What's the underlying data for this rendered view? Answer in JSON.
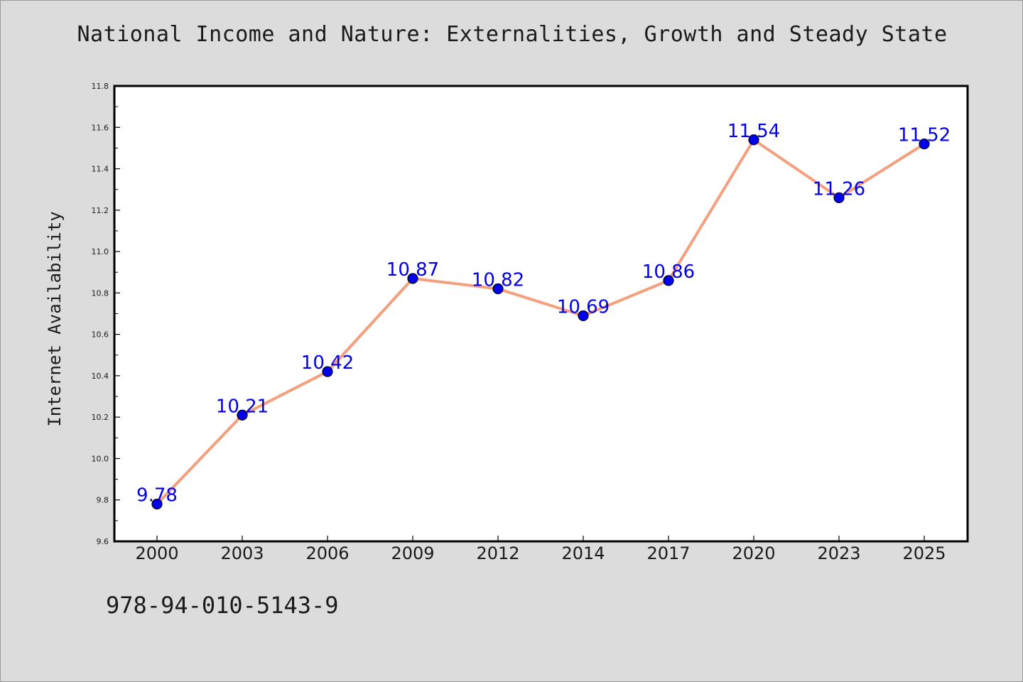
{
  "page": {
    "title": "National Income and Nature: Externalities, Growth and Steady State",
    "isbn": "978-94-010-5143-9"
  },
  "chart_data": {
    "type": "line",
    "title": "National Income and Nature: Externalities, Growth and Steady State",
    "xlabel": "",
    "ylabel": "Internet Availability",
    "categories": [
      "2000",
      "2003",
      "2006",
      "2009",
      "2012",
      "2014",
      "2017",
      "2020",
      "2023",
      "2025"
    ],
    "series": [
      {
        "values": [
          9.78,
          10.21,
          10.42,
          10.87,
          10.82,
          10.69,
          10.86,
          11.54,
          11.26,
          11.52
        ],
        "labels": [
          "9.78",
          "10.21",
          "10.42",
          "10.87",
          "10.82",
          "10.69",
          "10.86",
          "11.54",
          "11.26",
          "11.52"
        ],
        "line_color": "#f4a07f",
        "marker_color": "#0000ee",
        "label_color": "#0000ee"
      }
    ],
    "ylim": [
      9.6,
      11.8
    ],
    "yticks": [
      "9.6",
      "9.8",
      "10.0",
      "10.2",
      "10.4",
      "10.6",
      "10.8",
      "11.0",
      "11.2",
      "11.4",
      "11.6",
      "11.8"
    ],
    "grid": false,
    "legend": "none"
  }
}
